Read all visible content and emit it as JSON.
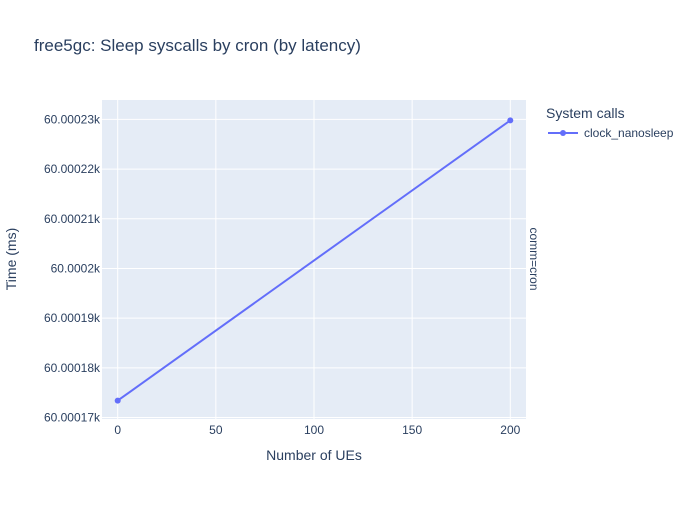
{
  "chart_data": {
    "type": "line",
    "title": "free5gc: Sleep syscalls by cron (by latency)",
    "xlabel": "Number of UEs",
    "ylabel": "Time (ms)",
    "x_ticks": [
      {
        "value": 0,
        "label": "0"
      },
      {
        "value": 50,
        "label": "50"
      },
      {
        "value": 100,
        "label": "100"
      },
      {
        "value": 150,
        "label": "150"
      },
      {
        "value": 200,
        "label": "200"
      }
    ],
    "y_ticks": [
      {
        "value": 60000.17,
        "label": "60.00017k"
      },
      {
        "value": 60000.18,
        "label": "60.00018k"
      },
      {
        "value": 60000.19,
        "label": "60.00019k"
      },
      {
        "value": 60000.2,
        "label": "60.0002k"
      },
      {
        "value": 60000.21,
        "label": "60.00021k"
      },
      {
        "value": 60000.22,
        "label": "60.00022k"
      },
      {
        "value": 60000.23,
        "label": "60.00023k"
      }
    ],
    "xlim": [
      -8,
      208
    ],
    "ylim": [
      60000.1697,
      60000.2339
    ],
    "grid": true,
    "legend": {
      "title": "System calls",
      "position": "top-right"
    },
    "facet_label": "comm=cron",
    "series": [
      {
        "name": "clock_nanosleep",
        "color": "#636efa",
        "x": [
          0,
          200
        ],
        "y": [
          60000.1734,
          60000.2298
        ]
      }
    ]
  }
}
